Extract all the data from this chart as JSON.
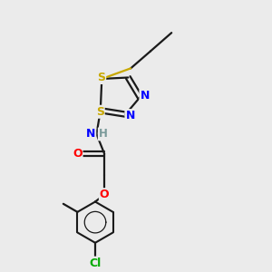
{
  "background_color": "#ebebeb",
  "bond_color": "#1a1a1a",
  "atom_colors": {
    "S": "#c8a800",
    "N": "#0000ff",
    "O": "#ff0000",
    "Cl": "#00aa00",
    "H": "#7a9a9a",
    "C": "#1a1a1a"
  },
  "figsize": [
    3.0,
    3.0
  ],
  "dpi": 100
}
